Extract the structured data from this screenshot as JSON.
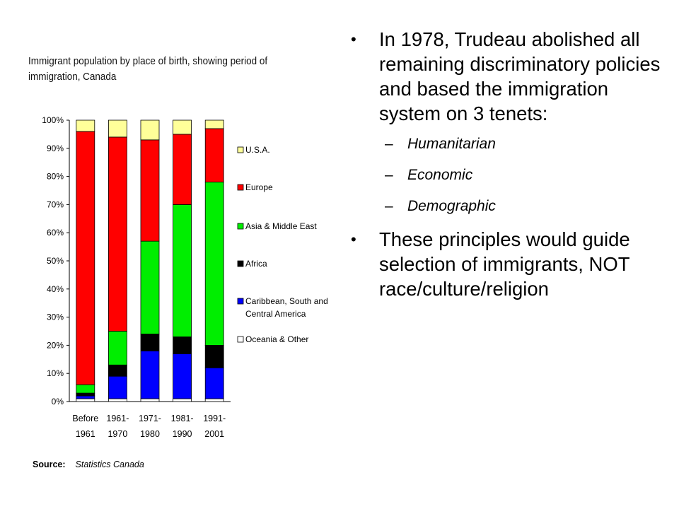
{
  "bullets": {
    "point1": "In 1978, Trudeau abolished all remaining discriminatory policies and based the immigration system on 3 tenets:",
    "sub": [
      "Humanitarian",
      "Economic",
      "Demographic"
    ],
    "point2": "These principles would guide selection of immigrants, NOT race/culture/religion",
    "bullet_glyph": "•",
    "dash_glyph": "–"
  },
  "source": {
    "label": "Source:",
    "text": "Statistics Canada"
  },
  "chart_data": {
    "type": "bar",
    "stacked": true,
    "title": "Immigrant population by place of birth, showing period of immigration, Canada",
    "categories": [
      [
        "Before",
        "1961"
      ],
      [
        "1961-",
        "1970"
      ],
      [
        "1971-",
        "1980"
      ],
      [
        "1981-",
        "1990"
      ],
      [
        "1991-",
        "2001"
      ]
    ],
    "yticks": [
      "0%",
      "10%",
      "20%",
      "30%",
      "40%",
      "50%",
      "60%",
      "70%",
      "80%",
      "90%",
      "100%"
    ],
    "ylim": [
      0,
      100
    ],
    "grid": false,
    "legend_position": "right",
    "series": [
      {
        "name": "Oceania & Other",
        "color": "#ffffff",
        "values": [
          1,
          1,
          1,
          1,
          1
        ]
      },
      {
        "name": "Caribbean, South and Central America",
        "color": "#0000ff",
        "values": [
          1,
          8,
          17,
          16,
          11
        ]
      },
      {
        "name": "Africa",
        "color": "#000000",
        "values": [
          1,
          4,
          6,
          6,
          8
        ]
      },
      {
        "name": "Asia & Middle East",
        "color": "#00ee00",
        "values": [
          3,
          12,
          33,
          47,
          58
        ]
      },
      {
        "name": "Europe",
        "color": "#ff0000",
        "values": [
          90,
          69,
          36,
          25,
          19
        ]
      },
      {
        "name": "U.S.A.",
        "color": "#ffff99",
        "values": [
          4,
          6,
          7,
          5,
          3
        ]
      }
    ],
    "legend_order": [
      "U.S.A.",
      "Europe",
      "Asia & Middle East",
      "Africa",
      "Caribbean, South and Central America",
      "Oceania & Other"
    ]
  }
}
